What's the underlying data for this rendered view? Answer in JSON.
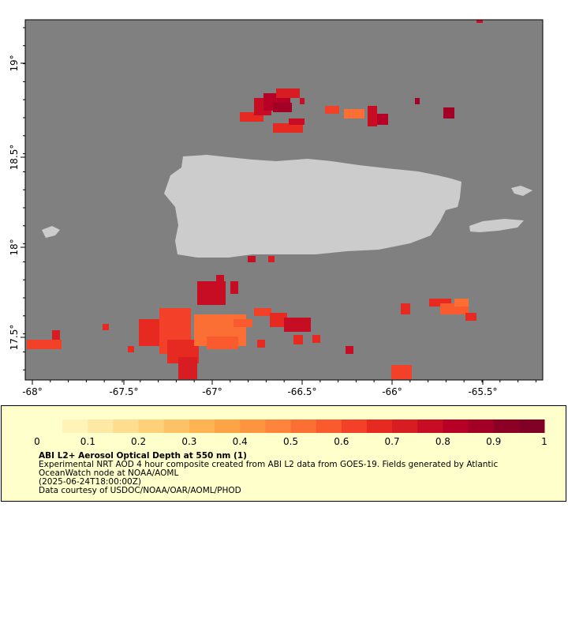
{
  "map": {
    "x_ticks": [
      "-68°",
      "-67.5°",
      "-67°",
      "-66.5°",
      "-66°",
      "-65.5°"
    ],
    "y_ticks": [
      "19°",
      "18.5°",
      "18°",
      "17.5°"
    ],
    "colors": {
      "ocean": "#808080",
      "land": "#cccccc"
    },
    "regions": [
      "Puerto Rico",
      "Vieques",
      "Culebra",
      "Mona Island"
    ]
  },
  "legend": {
    "ticks": [
      "0",
      "0.1",
      "0.2",
      "0.3",
      "0.4",
      "0.5",
      "0.6",
      "0.7",
      "0.8",
      "0.9",
      "1"
    ],
    "title": "ABI L2+ Aerosol Optical Depth at 550 nm (1)",
    "desc_line1": "Experimental NRT AOD 4 hour composite created from ABI L2 data from GOES-19. Fields generated by Atlantic",
    "desc_line2": "OceanWatch node at NOAA/AOML",
    "timestamp": "(2025-06-24T18:00:00Z)",
    "credit": "Data courtesy of USDOC/NOAA/OAR/AOML/PHOD",
    "colormap": [
      "#ffffcc",
      "#fff3b8",
      "#fee9a4",
      "#fedd8e",
      "#fed07a",
      "#fec266",
      "#feb452",
      "#fda446",
      "#fd9440",
      "#fd843a",
      "#fc6f34",
      "#f95a2e",
      "#f24128",
      "#e62a22",
      "#d71c22",
      "#c70d23",
      "#b70026",
      "#a30026",
      "#8d0026",
      "#800026"
    ]
  }
}
